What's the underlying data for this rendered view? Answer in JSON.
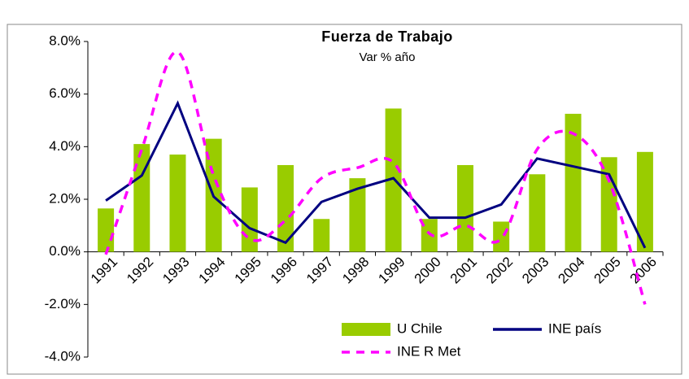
{
  "chart_data": {
    "type": "bar-line",
    "title": "Fuerza de Trabajo",
    "subtitle": "Var % año",
    "categories": [
      "1991",
      "1992",
      "1993",
      "1994",
      "1995",
      "1996",
      "1997",
      "1998",
      "1999",
      "2000",
      "2001",
      "2002",
      "2003",
      "2004",
      "2005",
      "2006"
    ],
    "series": [
      {
        "name": "U Chile",
        "type": "bar",
        "color": "#99cc00",
        "values": [
          1.65,
          4.1,
          3.7,
          4.3,
          2.45,
          3.3,
          1.25,
          2.8,
          5.45,
          1.25,
          3.3,
          1.15,
          2.95,
          5.25,
          3.6,
          3.8
        ]
      },
      {
        "name": "INE país",
        "type": "line",
        "color": "#000080",
        "values": [
          1.95,
          2.9,
          5.65,
          2.1,
          0.9,
          0.35,
          1.9,
          2.4,
          2.8,
          1.3,
          1.3,
          1.8,
          3.55,
          3.25,
          2.95,
          0.15
        ]
      },
      {
        "name": "INE R Met",
        "type": "smooth-dashed",
        "color": "#ff00ff",
        "values": [
          -0.1,
          3.9,
          7.6,
          2.9,
          0.5,
          1.2,
          2.8,
          3.2,
          3.4,
          0.7,
          1.0,
          0.5,
          3.9,
          4.5,
          2.7,
          -2.0
        ]
      }
    ],
    "ylim": [
      -4,
      8
    ],
    "yticks": [
      {
        "value": -4,
        "label": "-4.0%"
      },
      {
        "value": -2,
        "label": "-2.0%"
      },
      {
        "value": 0,
        "label": "0.0%"
      },
      {
        "value": 2,
        "label": "2.0%"
      },
      {
        "value": 4,
        "label": "4.0%"
      },
      {
        "value": 6,
        "label": "6.0%"
      },
      {
        "value": 8,
        "label": "8.0%"
      }
    ],
    "grid": false,
    "legend": "bottom"
  }
}
